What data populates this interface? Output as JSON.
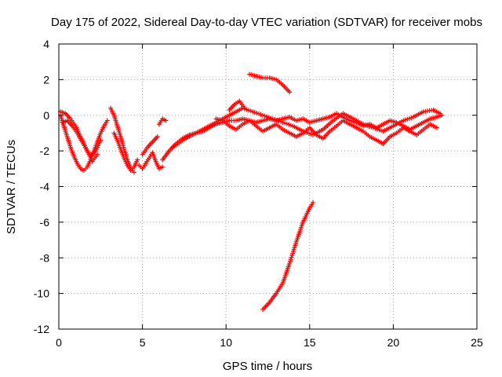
{
  "chart_data": {
    "type": "scatter",
    "title": "Day 175 of 2022, Sidereal Day-to-day VTEC variation (SDTVAR) for receiver mobs",
    "xlabel": "GPS time / hours",
    "ylabel": "SDTVAR / TECUs",
    "xlim": [
      0,
      25
    ],
    "ylim": [
      -12,
      4
    ],
    "xticks": [
      0,
      5,
      10,
      15,
      20,
      25
    ],
    "yticks": [
      -12,
      -10,
      -8,
      -6,
      -4,
      -2,
      0,
      2,
      4
    ],
    "grid": true,
    "marker": "+",
    "color": "#ff0000",
    "series": [
      {
        "name": "SDTVAR",
        "segments": [
          {
            "x": [
              0.1,
              0.3,
              0.5,
              0.7,
              0.9,
              1.1,
              1.3,
              1.5,
              1.7,
              1.9,
              2.1,
              2.3,
              2.5,
              2.7,
              2.9
            ],
            "y": [
              0.0,
              -0.6,
              -1.2,
              -1.8,
              -2.3,
              -2.7,
              -3.0,
              -3.1,
              -2.9,
              -2.5,
              -2.0,
              -1.5,
              -1.0,
              -0.6,
              -0.3
            ]
          },
          {
            "x": [
              0.1,
              0.4,
              0.7,
              1.0,
              1.3,
              1.6,
              1.9,
              2.2,
              2.5
            ],
            "y": [
              0.2,
              0.1,
              -0.2,
              -0.6,
              -1.2,
              -1.8,
              -2.3,
              -2.0,
              -1.4
            ]
          },
          {
            "x": [
              0.2,
              0.5,
              0.8,
              1.1,
              1.4,
              1.7,
              2.0,
              2.3
            ],
            "y": [
              -0.4,
              -0.3,
              -0.6,
              -1.0,
              -1.5,
              -2.0,
              -2.6,
              -2.2
            ]
          },
          {
            "x": [
              3.1,
              3.3,
              3.5,
              3.7,
              3.9,
              4.1,
              4.3,
              4.5
            ],
            "y": [
              0.4,
              0.0,
              -0.6,
              -1.2,
              -1.9,
              -2.5,
              -3.0,
              -3.2
            ]
          },
          {
            "x": [
              3.3,
              3.5,
              3.7,
              3.9,
              4.1,
              4.3,
              4.5,
              4.7
            ],
            "y": [
              -1.0,
              -1.4,
              -1.9,
              -2.4,
              -2.8,
              -3.1,
              -2.9,
              -2.5
            ]
          },
          {
            "x": [
              4.8,
              5.0,
              5.2,
              5.4,
              5.6,
              5.8,
              6.0,
              6.2
            ],
            "y": [
              -2.8,
              -3.0,
              -2.7,
              -2.4,
              -2.1,
              -2.6,
              -3.0,
              -2.9
            ]
          },
          {
            "x": [
              5.0,
              5.3,
              5.6,
              5.9
            ],
            "y": [
              -2.2,
              -1.8,
              -1.5,
              -1.2
            ]
          },
          {
            "x": [
              6.0,
              6.2,
              6.4
            ],
            "y": [
              -0.5,
              -0.2,
              -0.3
            ]
          },
          {
            "x": [
              6.2,
              6.6,
              7.0,
              7.4,
              7.8,
              8.2,
              8.6,
              9.0,
              9.4,
              9.8,
              10.2,
              10.6,
              11.0,
              11.4,
              11.8,
              12.2,
              12.6,
              13.0,
              13.4,
              13.8,
              14.2,
              14.6,
              15.0,
              15.4,
              15.8,
              16.2,
              16.6,
              17.0,
              17.4,
              17.8,
              18.2,
              18.6,
              19.0,
              19.4,
              19.8,
              20.2,
              20.6,
              21.0,
              21.4,
              21.8,
              22.2,
              22.6,
              22.9
            ],
            "y": [
              -2.5,
              -2.0,
              -1.6,
              -1.3,
              -1.1,
              -1.0,
              -0.9,
              -0.7,
              -0.5,
              -0.4,
              -0.3,
              -0.3,
              -0.2,
              -0.3,
              -0.4,
              -0.3,
              -0.2,
              -0.3,
              -0.2,
              -0.1,
              -0.3,
              -0.2,
              -0.4,
              -0.3,
              -0.2,
              -0.1,
              0.1,
              -0.1,
              -0.3,
              -0.4,
              -0.6,
              -0.5,
              -0.7,
              -0.5,
              -0.3,
              -0.4,
              -0.6,
              -0.8,
              -0.6,
              -0.4,
              -0.2,
              -0.1,
              0.0
            ]
          },
          {
            "x": [
              6.8,
              7.4,
              8.0,
              8.6,
              9.2,
              9.8,
              10.4,
              11.0,
              11.6,
              12.2,
              12.8,
              13.4,
              14.0,
              14.6,
              15.2,
              15.8,
              16.4,
              17.0,
              17.6,
              18.2,
              18.8,
              19.4,
              20.0,
              20.6,
              21.2,
              21.8,
              22.4,
              22.8
            ],
            "y": [
              -1.8,
              -1.4,
              -1.1,
              -0.8,
              -0.5,
              -0.2,
              0.1,
              0.4,
              0.2,
              0.0,
              -0.2,
              -0.4,
              -0.6,
              -0.9,
              -1.1,
              -0.8,
              -0.3,
              0.1,
              -0.2,
              -0.5,
              -0.7,
              -0.9,
              -0.6,
              -0.3,
              -0.1,
              0.2,
              0.3,
              0.1
            ]
          },
          {
            "x": [
              9.4,
              9.8,
              10.2,
              10.6,
              11.0,
              11.4,
              11.8,
              12.2,
              12.6,
              13.0,
              13.4,
              13.8,
              14.2,
              14.6,
              15.0,
              15.4,
              15.8,
              16.2,
              16.6,
              17.0,
              17.4,
              17.8,
              18.2,
              18.6,
              19.0,
              19.4,
              19.8,
              20.2,
              20.6,
              21.0,
              21.4,
              21.8,
              22.2,
              22.6
            ],
            "y": [
              -0.2,
              -0.3,
              -0.6,
              -0.8,
              -0.5,
              -0.3,
              -0.6,
              -0.9,
              -0.7,
              -0.5,
              -0.8,
              -1.0,
              -1.2,
              -1.0,
              -0.7,
              -1.1,
              -1.3,
              -0.9,
              -0.6,
              -0.3,
              -0.5,
              -0.7,
              -0.9,
              -1.2,
              -1.4,
              -1.6,
              -1.2,
              -1.0,
              -0.7,
              -0.9,
              -1.1,
              -0.8,
              -0.5,
              -0.7
            ]
          },
          {
            "x": [
              10.2,
              10.5,
              10.8,
              11.1
            ],
            "y": [
              0.3,
              0.6,
              0.8,
              0.4
            ]
          },
          {
            "x": [
              11.4,
              11.8,
              12.2,
              12.6,
              13.0,
              13.4,
              13.8
            ],
            "y": [
              2.3,
              2.2,
              2.1,
              2.1,
              2.0,
              1.7,
              1.3
            ]
          },
          {
            "x": [
              12.2,
              12.6,
              13.0,
              13.4,
              13.8,
              14.2,
              14.6,
              15.0,
              15.2
            ],
            "y": [
              -10.9,
              -10.5,
              -10.0,
              -9.4,
              -8.3,
              -7.1,
              -6.0,
              -5.2,
              -4.9
            ]
          }
        ]
      }
    ]
  }
}
